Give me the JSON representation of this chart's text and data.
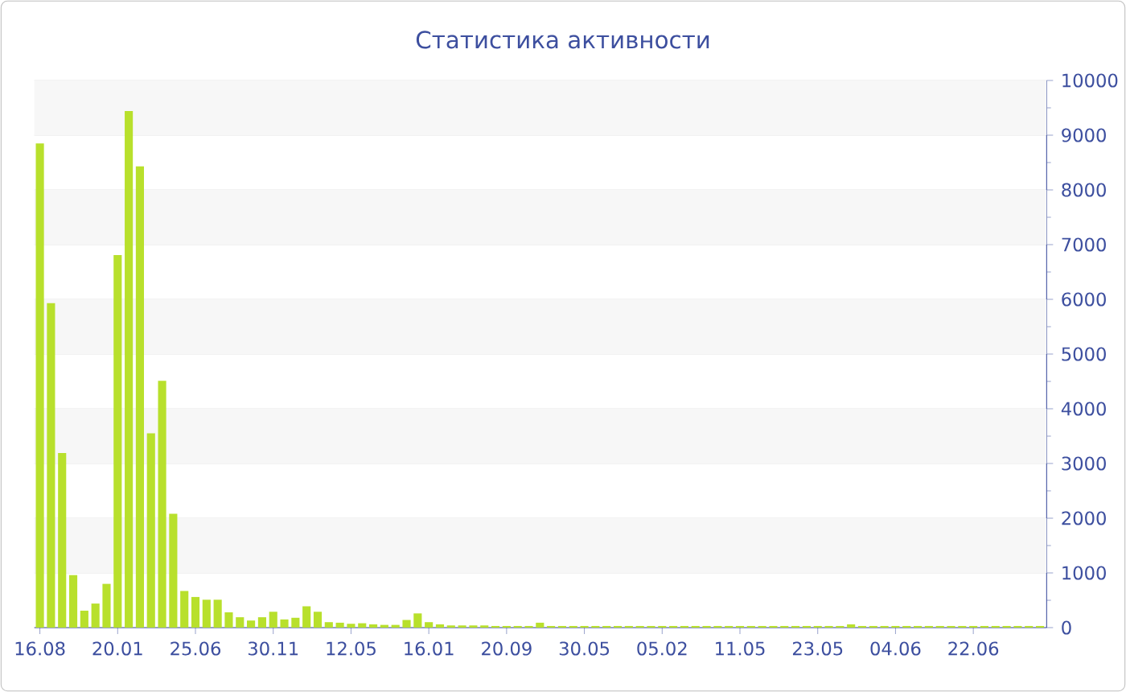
{
  "chart_data": {
    "type": "bar",
    "title": "Статистика активности",
    "categories": [
      "16.08",
      null,
      null,
      null,
      null,
      null,
      null,
      "20.01",
      null,
      null,
      null,
      null,
      null,
      null,
      "25.06",
      null,
      null,
      null,
      null,
      null,
      null,
      "30.11",
      null,
      null,
      null,
      null,
      null,
      null,
      "12.05",
      null,
      null,
      null,
      null,
      null,
      null,
      "16.01",
      null,
      null,
      null,
      null,
      null,
      null,
      "20.09",
      null,
      null,
      null,
      null,
      null,
      null,
      "30.05",
      null,
      null,
      null,
      null,
      null,
      null,
      "05.02",
      null,
      null,
      null,
      null,
      null,
      null,
      "11.05",
      null,
      null,
      null,
      null,
      null,
      null,
      "23.05",
      null,
      null,
      null,
      null,
      null,
      null,
      "04.06",
      null,
      null,
      null,
      null,
      null,
      null,
      "22.06",
      null,
      null,
      null,
      null,
      null,
      null
    ],
    "values": [
      8850,
      5930,
      3190,
      960,
      310,
      440,
      800,
      6810,
      9440,
      8430,
      3550,
      4510,
      2080,
      670,
      560,
      510,
      510,
      280,
      190,
      130,
      190,
      290,
      150,
      180,
      390,
      290,
      100,
      90,
      70,
      80,
      60,
      50,
      50,
      140,
      260,
      100,
      60,
      40,
      40,
      40,
      40,
      30,
      30,
      30,
      30,
      90,
      30,
      30,
      30,
      30,
      30,
      30,
      30,
      30,
      30,
      30,
      30,
      30,
      30,
      30,
      30,
      30,
      30,
      30,
      30,
      30,
      30,
      30,
      30,
      30,
      30,
      30,
      30,
      60,
      30,
      30,
      30,
      30,
      30,
      30,
      30,
      30,
      30,
      30,
      30,
      30,
      30,
      30,
      30,
      30,
      30
    ],
    "color": "#b8e02c",
    "ylim": [
      0,
      10000
    ],
    "yticks": [
      0,
      1000,
      2000,
      3000,
      4000,
      5000,
      6000,
      7000,
      8000,
      9000,
      10000
    ],
    "grid": "y"
  }
}
